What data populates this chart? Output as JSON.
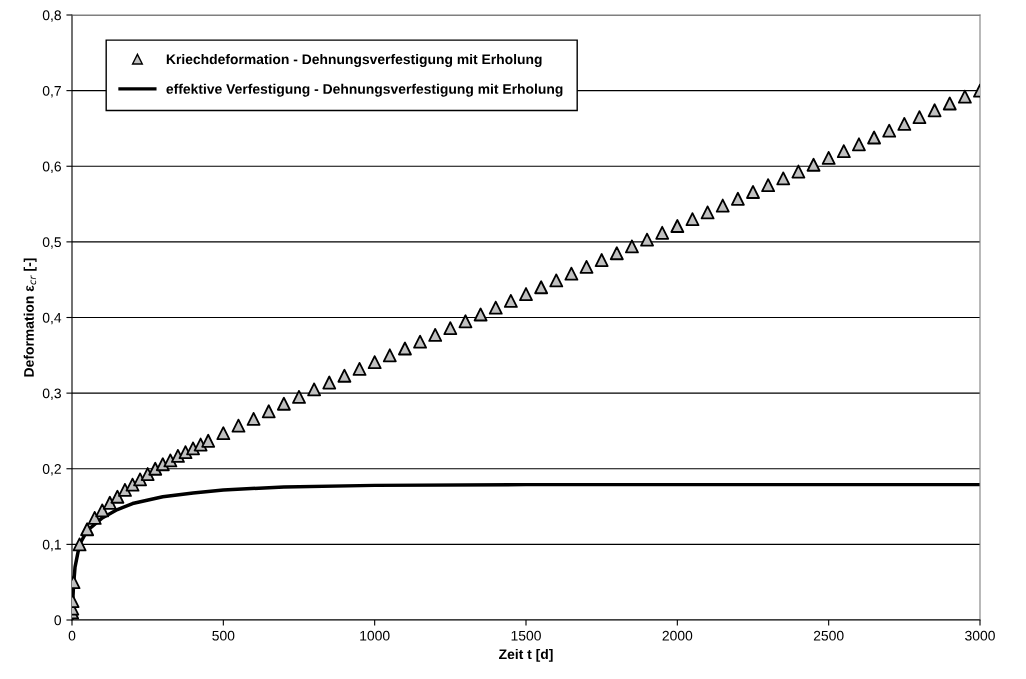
{
  "chart_data": {
    "type": "scatter",
    "xlabel": "Zeit t [d]",
    "ylabel": "Deformation ε$_{cr}$ [-]",
    "xlim": [
      0,
      3000
    ],
    "xticks": [
      0,
      500,
      1000,
      1500,
      2000,
      2500,
      3000
    ],
    "ylim": [
      0,
      0.8
    ],
    "yticks": [
      {
        "value": 0,
        "label": "0"
      },
      {
        "value": 0.1,
        "label": "0,1"
      },
      {
        "value": 0.2,
        "label": "0,2"
      },
      {
        "value": 0.3,
        "label": "0,3"
      },
      {
        "value": 0.4,
        "label": "0,4"
      },
      {
        "value": 0.5,
        "label": "0,5"
      },
      {
        "value": 0.6,
        "label": "0,6"
      },
      {
        "value": 0.7,
        "label": "0,7"
      },
      {
        "value": 0.8,
        "label": "0,8"
      }
    ],
    "grid": "y",
    "legend": "top left",
    "series": [
      {
        "name": "Kriechdeformation - Dehnungsverfestigung mit Erholung",
        "marker": "triangle",
        "color": "#c0c0c0",
        "x": [
          0.5,
          1,
          2,
          5,
          25,
          50,
          75,
          100,
          125,
          150,
          175,
          200,
          225,
          250,
          275,
          300,
          325,
          350,
          375,
          400,
          425,
          450,
          500,
          550,
          600,
          650,
          700,
          750,
          800,
          850,
          900,
          950,
          1000,
          1050,
          1100,
          1150,
          1200,
          1250,
          1300,
          1350,
          1400,
          1450,
          1500,
          1550,
          1600,
          1650,
          1700,
          1750,
          1800,
          1850,
          1900,
          1950,
          2000,
          2050,
          2100,
          2150,
          2200,
          2250,
          2300,
          2350,
          2400,
          2450,
          2500,
          2550,
          2600,
          2650,
          2700,
          2750,
          2800,
          2850,
          2900,
          2950,
          3000
        ],
        "values": [
          0.01,
          0.015,
          0.025,
          0.05,
          0.1,
          0.12,
          0.135,
          0.145,
          0.155,
          0.163,
          0.172,
          0.179,
          0.186,
          0.193,
          0.2,
          0.206,
          0.211,
          0.217,
          0.222,
          0.227,
          0.232,
          0.237,
          0.247,
          0.257,
          0.266,
          0.276,
          0.286,
          0.295,
          0.305,
          0.314,
          0.323,
          0.332,
          0.341,
          0.35,
          0.359,
          0.368,
          0.377,
          0.386,
          0.395,
          0.404,
          0.413,
          0.422,
          0.431,
          0.44,
          0.449,
          0.458,
          0.467,
          0.476,
          0.485,
          0.494,
          0.503,
          0.512,
          0.521,
          0.53,
          0.539,
          0.548,
          0.557,
          0.566,
          0.575,
          0.584,
          0.593,
          0.602,
          0.611,
          0.62,
          0.629,
          0.638,
          0.647,
          0.656,
          0.665,
          0.674,
          0.683,
          0.692,
          0.7
        ]
      },
      {
        "name": "effektive Verfestigung - Dehnungsverfestigung mit Erholung",
        "type": "line",
        "marker": "none",
        "line_style": "solid",
        "color": "#000000",
        "x": [
          0,
          1,
          5,
          10,
          25,
          50,
          100,
          150,
          200,
          300,
          400,
          500,
          700,
          1000,
          1500,
          2000,
          3000
        ],
        "values": [
          0,
          0.013,
          0.045,
          0.07,
          0.1,
          0.118,
          0.135,
          0.146,
          0.154,
          0.163,
          0.168,
          0.172,
          0.176,
          0.178,
          0.179,
          0.179,
          0.179
        ]
      }
    ]
  }
}
